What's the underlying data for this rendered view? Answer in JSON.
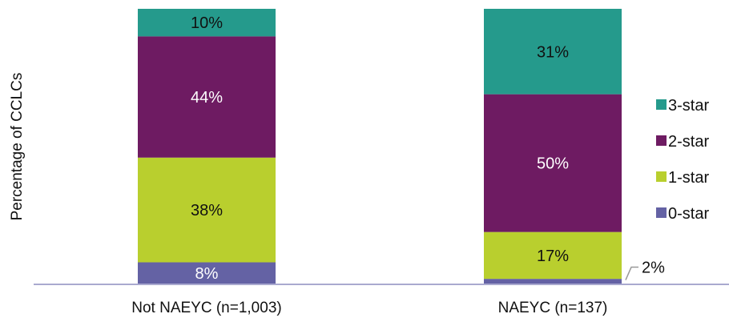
{
  "chart_data": {
    "type": "bar",
    "stacked": true,
    "title": "",
    "ylabel": "Percentage of CCLCs",
    "xlabel": "",
    "ylim": [
      0,
      100
    ],
    "grid": false,
    "legend_position": "right",
    "categories": [
      "Not NAEYC (n=1,003)",
      "NAEYC (n=137)"
    ],
    "series": [
      {
        "name": "0-star",
        "values": [
          8,
          2
        ],
        "labels": [
          "8%",
          "2%"
        ],
        "color": "#6462a4",
        "label_color": "#ffffff"
      },
      {
        "name": "1-star",
        "values": [
          38,
          17
        ],
        "labels": [
          "38%",
          "17%"
        ],
        "color": "#b9cf2e",
        "label_color": "#111111"
      },
      {
        "name": "2-star",
        "values": [
          44,
          50
        ],
        "labels": [
          "44%",
          "50%"
        ],
        "color": "#6e1b62",
        "label_color": "#ffffff"
      },
      {
        "name": "3-star",
        "values": [
          10,
          31
        ],
        "labels": [
          "10%",
          "31%"
        ],
        "color": "#259a8c",
        "label_color": "#111111"
      }
    ],
    "legend": [
      "3-star",
      "2-star",
      "1-star",
      "0-star"
    ],
    "axis_color": "#a9a9cf"
  }
}
